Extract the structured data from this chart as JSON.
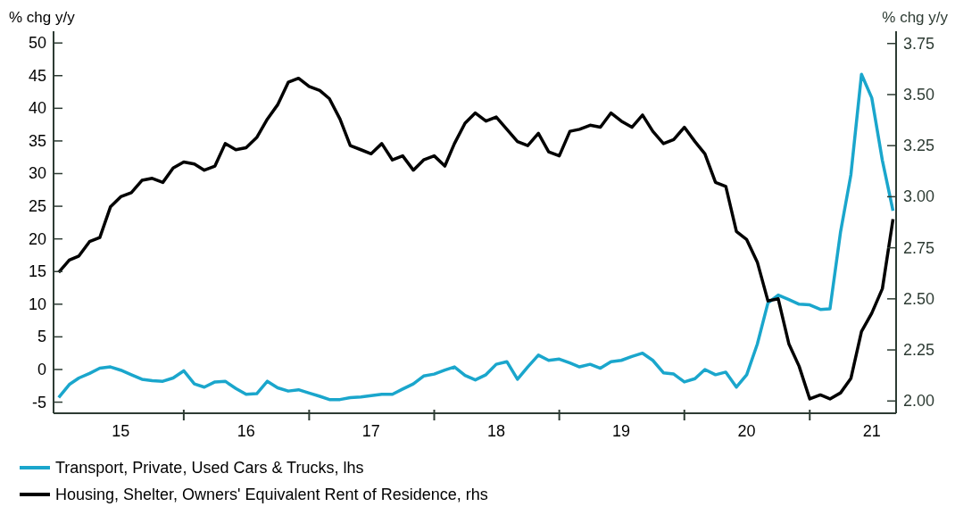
{
  "chart_data": {
    "type": "line",
    "ylabel": "% chg y/y",
    "y2label": "% chg y/y",
    "x": [
      "2015-01",
      "2015-02",
      "2015-03",
      "2015-04",
      "2015-05",
      "2015-06",
      "2015-07",
      "2015-08",
      "2015-09",
      "2015-10",
      "2015-11",
      "2015-12",
      "2016-01",
      "2016-02",
      "2016-03",
      "2016-04",
      "2016-05",
      "2016-06",
      "2016-07",
      "2016-08",
      "2016-09",
      "2016-10",
      "2016-11",
      "2016-12",
      "2017-01",
      "2017-02",
      "2017-03",
      "2017-04",
      "2017-05",
      "2017-06",
      "2017-07",
      "2017-08",
      "2017-09",
      "2017-10",
      "2017-11",
      "2017-12",
      "2018-01",
      "2018-02",
      "2018-03",
      "2018-04",
      "2018-05",
      "2018-06",
      "2018-07",
      "2018-08",
      "2018-09",
      "2018-10",
      "2018-11",
      "2018-12",
      "2019-01",
      "2019-02",
      "2019-03",
      "2019-04",
      "2019-05",
      "2019-06",
      "2019-07",
      "2019-08",
      "2019-09",
      "2019-10",
      "2019-11",
      "2019-12",
      "2020-01",
      "2020-02",
      "2020-03",
      "2020-04",
      "2020-05",
      "2020-06",
      "2020-07",
      "2020-08",
      "2020-09",
      "2020-10",
      "2020-11",
      "2020-12",
      "2021-01",
      "2021-02",
      "2021-03",
      "2021-04",
      "2021-05",
      "2021-06",
      "2021-07",
      "2021-08",
      "2021-09"
    ],
    "series": [
      {
        "name": "Transport, Private, Used Cars & Trucks, lhs",
        "color": "#1aa6cc",
        "values": [
          -4.3,
          -2.3,
          -1.3,
          -0.6,
          0.2,
          0.4,
          -0.1,
          -0.8,
          -1.5,
          -1.7,
          -1.8,
          -1.3,
          -0.2,
          -2.2,
          -2.7,
          -1.9,
          -1.8,
          -2.9,
          -3.8,
          -3.7,
          -1.8,
          -2.8,
          -3.3,
          -3.1,
          -3.6,
          -4.1,
          -4.6,
          -4.6,
          -4.3,
          -4.2,
          -4.0,
          -3.8,
          -3.8,
          -3.0,
          -2.2,
          -1.0,
          -0.7,
          -0.1,
          0.4,
          -0.9,
          -1.6,
          -0.8,
          0.8,
          1.2,
          -1.5,
          0.4,
          2.2,
          1.4,
          1.6,
          1.0,
          0.4,
          0.8,
          0.2,
          1.2,
          1.4,
          2.0,
          2.5,
          1.4,
          -0.5,
          -0.7,
          -1.9,
          -1.4,
          0.0,
          -0.8,
          -0.4,
          -2.7,
          -0.8,
          3.9,
          10.2,
          11.4,
          10.7,
          10.0,
          9.9,
          9.2,
          9.3,
          21.1,
          29.8,
          45.2,
          41.6,
          32.0,
          24.3
        ]
      },
      {
        "name": "Housing, Shelter, Owners' Equivalent Rent of Residence, rhs",
        "color": "#000000",
        "axis": "y2",
        "values": [
          2.63,
          2.69,
          2.71,
          2.78,
          2.8,
          2.95,
          3.0,
          3.02,
          3.08,
          3.09,
          3.07,
          3.14,
          3.17,
          3.16,
          3.13,
          3.15,
          3.26,
          3.23,
          3.24,
          3.29,
          3.38,
          3.45,
          3.56,
          3.58,
          3.54,
          3.52,
          3.48,
          3.38,
          3.25,
          3.23,
          3.21,
          3.26,
          3.18,
          3.2,
          3.13,
          3.18,
          3.2,
          3.15,
          3.26,
          3.36,
          3.41,
          3.37,
          3.39,
          3.33,
          3.27,
          3.25,
          3.31,
          3.22,
          3.2,
          3.32,
          3.33,
          3.35,
          3.34,
          3.41,
          3.37,
          3.34,
          3.4,
          3.32,
          3.26,
          3.28,
          3.34,
          3.27,
          3.21,
          3.07,
          3.05,
          2.83,
          2.79,
          2.68,
          2.49,
          2.5,
          2.28,
          2.17,
          2.01,
          2.03,
          2.01,
          2.04,
          2.11,
          2.34,
          2.43,
          2.55,
          2.89
        ]
      }
    ],
    "xlim": [
      "2014-12-17",
      "2021-09-10"
    ],
    "xticks": [
      {
        "value": "2015-07-01",
        "label": "15"
      },
      {
        "value": "2016-01-01",
        "label": null
      },
      {
        "value": "2016-07-01",
        "label": "16"
      },
      {
        "value": "2017-01-01",
        "label": null
      },
      {
        "value": "2017-07-01",
        "label": "17"
      },
      {
        "value": "2018-01-01",
        "label": null
      },
      {
        "value": "2018-07-01",
        "label": "18"
      },
      {
        "value": "2019-01-01",
        "label": null
      },
      {
        "value": "2019-07-01",
        "label": "19"
      },
      {
        "value": "2020-01-01",
        "label": null
      },
      {
        "value": "2020-07-01",
        "label": "20"
      },
      {
        "value": "2021-01-01",
        "label": null
      },
      {
        "value": "2021-07-01",
        "label": "21"
      }
    ],
    "ylim": [
      -6.7,
      51.8
    ],
    "yticks": [
      -5,
      0,
      5,
      10,
      15,
      20,
      25,
      30,
      35,
      40,
      45,
      50
    ],
    "y2lim": [
      1.94,
      3.81
    ],
    "y2ticks": [
      {
        "value": 2,
        "label": "2.00"
      },
      {
        "value": 2.25,
        "label": "2.25"
      },
      {
        "value": 2.5,
        "label": "2.50"
      },
      {
        "value": 2.75,
        "label": "2.75"
      },
      {
        "value": 3,
        "label": "3.00"
      },
      {
        "value": 3.25,
        "label": "3.25"
      },
      {
        "value": 3.5,
        "label": "3.50"
      },
      {
        "value": 3.75,
        "label": "3.75"
      }
    ],
    "grid": false,
    "legend": "bottom left",
    "marker": "none",
    "line_style": "solid"
  }
}
